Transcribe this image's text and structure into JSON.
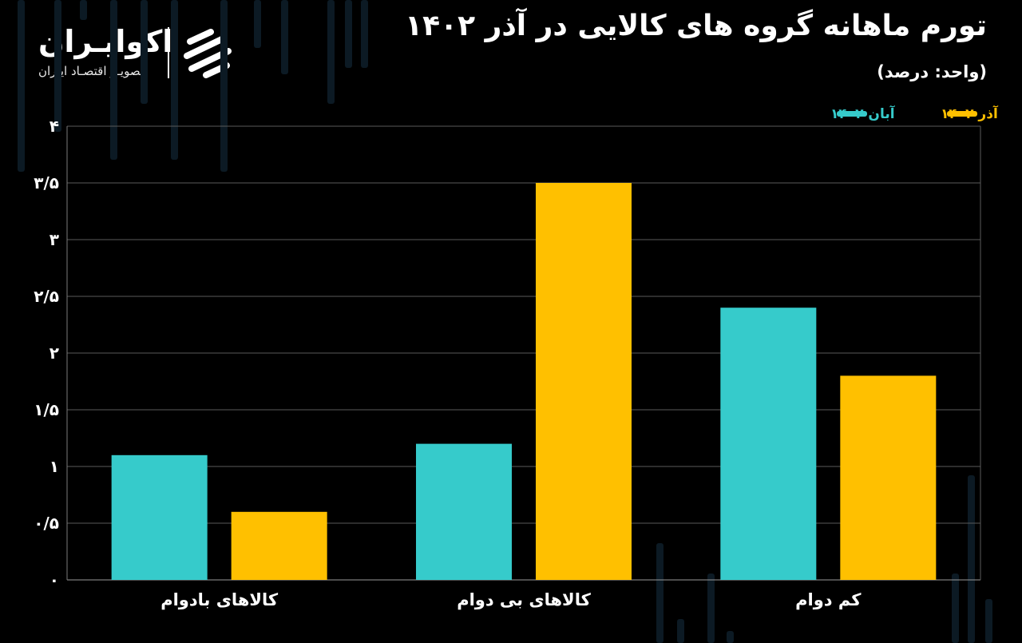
{
  "header": {
    "title": "تورم ماهانه گروه های کالایی در آذر ۱۴۰۲",
    "unit_note": "(واحد: درصد)"
  },
  "brand": {
    "name": "اکوایـران",
    "tagline": "تصویـر اقتصـاد ایـران"
  },
  "colors": {
    "background": "#000000",
    "series_aban": "#36CBCB",
    "series_azar": "#FFC000",
    "grid": "#5a5a5a",
    "text": "#ffffff"
  },
  "chart_data": {
    "type": "bar",
    "title": "تورم ماهانه گروه های کالایی در آذر ۱۴۰۲",
    "subtitle": "(واحد: درصد)",
    "categories": [
      "کالاهای بادوام",
      "کالاهای بی دوام",
      "کم دوام"
    ],
    "series": [
      {
        "name": "آبان ۱۴۰۲",
        "color": "#36CBCB",
        "values": [
          1.1,
          1.2,
          2.4
        ]
      },
      {
        "name": "آذر ۱۴۰۲",
        "color": "#FFC000",
        "values": [
          0.6,
          3.5,
          1.8
        ]
      }
    ],
    "ylim": [
      0,
      4
    ],
    "y_ticks": [
      0,
      0.5,
      1,
      1.5,
      2,
      2.5,
      3,
      3.5,
      4
    ],
    "y_tick_labels": [
      "۰",
      "۰/۵",
      "۱",
      "۱/۵",
      "۲",
      "۲/۵",
      "۳",
      "۳/۵",
      "۴"
    ],
    "xlabel": "",
    "ylabel": "",
    "grid": true,
    "legend_position": "top-right"
  }
}
